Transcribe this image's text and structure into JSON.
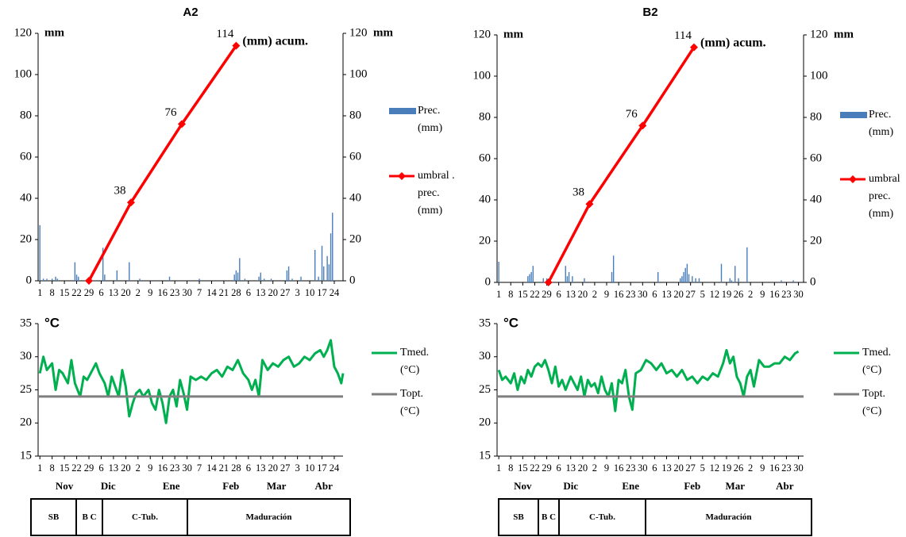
{
  "chart_data": [
    {
      "type": "bar",
      "title": "A2",
      "y_label": "mm",
      "y2_label": "mm",
      "annotation": "(mm) acum.",
      "xlim": [
        0,
        174
      ],
      "ylim": [
        0,
        120
      ],
      "y2lim": [
        0,
        120
      ],
      "yticks": [
        0,
        20,
        40,
        60,
        80,
        100,
        120
      ],
      "y2ticks": [
        0,
        20,
        40,
        60,
        80,
        100,
        120
      ],
      "xticks": [
        1,
        8,
        15,
        22,
        29,
        {
          "value": 36,
          "label": "6"
        },
        {
          "value": 43,
          "label": "13"
        },
        {
          "value": 50,
          "label": "20"
        },
        {
          "value": 57,
          "label": "2"
        },
        {
          "value": 64,
          "label": "9"
        },
        {
          "value": 71,
          "label": "16"
        },
        {
          "value": 78,
          "label": "23"
        },
        {
          "value": 85,
          "label": "30"
        },
        {
          "value": 92,
          "label": "7"
        },
        {
          "value": 99,
          "label": "14"
        },
        {
          "value": 106,
          "label": "21"
        },
        {
          "value": 113,
          "label": "28"
        },
        {
          "value": 120,
          "label": "6"
        },
        {
          "value": 127,
          "label": "13"
        },
        {
          "value": 134,
          "label": "20"
        },
        {
          "value": 141,
          "label": "27"
        },
        {
          "value": 148,
          "label": "3"
        },
        {
          "value": 155,
          "label": "10"
        },
        {
          "value": 162,
          "label": "17"
        },
        {
          "value": 169,
          "label": "24"
        }
      ],
      "series": [
        {
          "name": "Prec. (mm)",
          "type": "bar",
          "color": "#4a7ebb",
          "x": [
            1,
            3,
            5,
            8,
            10,
            11,
            21,
            22,
            23,
            37,
            38,
            45,
            52,
            58,
            75,
            92,
            112,
            113,
            114,
            115,
            118,
            126,
            127,
            129,
            133,
            142,
            143,
            145,
            150,
            158,
            160,
            162,
            163,
            165,
            166,
            167,
            168
          ],
          "values": [
            27,
            1,
            1,
            1,
            2,
            1,
            9,
            3,
            2,
            16,
            3,
            5,
            9,
            1,
            2,
            1,
            3,
            5,
            4,
            11,
            1,
            2,
            4,
            1,
            1,
            5,
            7,
            1,
            2,
            15,
            2,
            17,
            7,
            12,
            8,
            23,
            33
          ]
        },
        {
          "name": "umbral . prec. (mm)",
          "type": "line",
          "marker": "diamond",
          "color": "#ff0000",
          "axis": "y2",
          "x": [
            29,
            53,
            82,
            113
          ],
          "values": [
            0,
            38,
            76,
            114
          ],
          "value_labels": [
            null,
            "38",
            "76",
            "114"
          ]
        }
      ]
    },
    {
      "type": "line",
      "y_label": "°C",
      "xlim": [
        0,
        174
      ],
      "ylim": [
        15,
        35
      ],
      "yticks": [
        15,
        20,
        25,
        30,
        35
      ],
      "xticks": [
        1,
        8,
        15,
        22,
        29,
        {
          "value": 36,
          "label": "6"
        },
        {
          "value": 43,
          "label": "13"
        },
        {
          "value": 50,
          "label": "20"
        },
        {
          "value": 57,
          "label": "2"
        },
        {
          "value": 64,
          "label": "9"
        },
        {
          "value": 71,
          "label": "16"
        },
        {
          "value": 78,
          "label": "23"
        },
        {
          "value": 85,
          "label": "30"
        },
        {
          "value": 92,
          "label": "7"
        },
        {
          "value": 99,
          "label": "14"
        },
        {
          "value": 106,
          "label": "21"
        },
        {
          "value": 113,
          "label": "28"
        },
        {
          "value": 120,
          "label": "6"
        },
        {
          "value": 127,
          "label": "13"
        },
        {
          "value": 134,
          "label": "20"
        },
        {
          "value": 141,
          "label": "27"
        },
        {
          "value": 148,
          "label": "3"
        },
        {
          "value": 155,
          "label": "10"
        },
        {
          "value": 162,
          "label": "17"
        },
        {
          "value": 169,
          "label": "24"
        }
      ],
      "xticks2": [
        {
          "value": 15,
          "label": "Nov"
        },
        {
          "value": 40,
          "label": "Dic"
        },
        {
          "value": 76,
          "label": "Ene"
        },
        {
          "value": 110,
          "label": "Feb"
        },
        {
          "value": 136,
          "label": "Mar"
        },
        {
          "value": 163,
          "label": "Abr"
        }
      ],
      "series": [
        {
          "name": "Tmed. (°C)",
          "type": "line",
          "color": "#00b050",
          "x": [
            1,
            3,
            5,
            8,
            10,
            12,
            14,
            17,
            19,
            21,
            24,
            26,
            28,
            31,
            33,
            35,
            38,
            40,
            42,
            44,
            46,
            48,
            50,
            52,
            54,
            56,
            58,
            60,
            63,
            65,
            67,
            69,
            71,
            73,
            75,
            77,
            79,
            81,
            83,
            85,
            87,
            90,
            93,
            96,
            99,
            102,
            105,
            108,
            111,
            114,
            117,
            120,
            122,
            124,
            126,
            128,
            131,
            134,
            137,
            140,
            143,
            146,
            149,
            152,
            155,
            158,
            161,
            163,
            165,
            167,
            169,
            171,
            173,
            174
          ],
          "values": [
            27.5,
            30,
            28,
            29,
            25,
            28,
            27.5,
            26,
            29.5,
            26,
            24,
            27,
            26.5,
            28,
            29,
            27.5,
            26,
            24,
            27,
            25.5,
            24,
            28,
            25.5,
            21,
            23,
            24.5,
            25,
            24,
            25,
            23,
            22,
            25,
            23,
            20,
            24,
            25,
            22.5,
            26.5,
            24.5,
            22,
            27,
            26.5,
            27,
            26.5,
            27.5,
            28,
            27,
            28.5,
            28,
            29.5,
            27.5,
            26.5,
            25,
            26.5,
            24,
            29.5,
            28,
            29,
            28.5,
            29.5,
            30,
            28.5,
            29,
            30,
            29.5,
            30.5,
            31,
            30,
            31,
            32.5,
            28.5,
            27.5,
            26,
            27.5
          ]
        },
        {
          "name": "Topt. (°C)",
          "type": "line",
          "color": "#7f7f7f",
          "x": [
            0,
            174
          ],
          "values": [
            24,
            24
          ]
        }
      ]
    },
    {
      "type": "bar",
      "title": "B2",
      "y_label": "mm",
      "y2_label": "mm",
      "annotation": "(mm) acum.",
      "xlim": [
        0,
        179
      ],
      "ylim": [
        0,
        120
      ],
      "y2lim": [
        0,
        120
      ],
      "yticks": [
        0,
        20,
        40,
        60,
        80,
        100,
        120
      ],
      "y2ticks": [
        0,
        20,
        40,
        60,
        80,
        100,
        120
      ],
      "xticks": [
        1,
        8,
        15,
        22,
        29,
        {
          "value": 36,
          "label": "6"
        },
        {
          "value": 43,
          "label": "13"
        },
        {
          "value": 50,
          "label": "20"
        },
        {
          "value": 57,
          "label": "2"
        },
        {
          "value": 64,
          "label": "9"
        },
        {
          "value": 71,
          "label": "16"
        },
        {
          "value": 78,
          "label": "23"
        },
        {
          "value": 85,
          "label": "30"
        },
        {
          "value": 92,
          "label": "6"
        },
        {
          "value": 99,
          "label": "13"
        },
        {
          "value": 106,
          "label": "20"
        },
        {
          "value": 113,
          "label": "27"
        },
        {
          "value": 120,
          "label": "5"
        },
        {
          "value": 127,
          "label": "12"
        },
        {
          "value": 134,
          "label": "19"
        },
        {
          "value": 141,
          "label": "26"
        },
        {
          "value": 148,
          "label": "2"
        },
        {
          "value": 155,
          "label": "9"
        },
        {
          "value": 162,
          "label": "16"
        },
        {
          "value": 169,
          "label": "23"
        },
        {
          "value": 176,
          "label": "30"
        }
      ],
      "series": [
        {
          "name": "Prec. (mm)",
          "type": "bar",
          "color": "#4a7ebb",
          "x": [
            1,
            18,
            19,
            20,
            21,
            27,
            29,
            40,
            41,
            42,
            44,
            51,
            67,
            68,
            94,
            107,
            108,
            109,
            110,
            111,
            112,
            114,
            116,
            118,
            131,
            136,
            137,
            139,
            141,
            146,
            166,
            173
          ],
          "values": [
            10,
            3,
            4,
            5,
            8,
            2,
            2,
            8,
            3,
            5,
            3,
            2,
            5,
            13,
            5,
            2,
            3,
            5,
            7,
            9,
            4,
            3,
            2,
            2,
            9,
            2,
            1,
            8,
            2,
            17,
            1,
            1
          ]
        },
        {
          "name": "umbral prec. (mm)",
          "type": "line",
          "marker": "diamond",
          "color": "#ff0000",
          "axis": "y2",
          "x": [
            30,
            54,
            85,
            115
          ],
          "values": [
            0,
            38,
            76,
            114
          ],
          "value_labels": [
            null,
            "38",
            "76",
            "114"
          ]
        }
      ]
    },
    {
      "type": "line",
      "y_label": "°C",
      "xlim": [
        0,
        179
      ],
      "ylim": [
        15,
        35
      ],
      "yticks": [
        15,
        20,
        25,
        30,
        35
      ],
      "xticks": [
        1,
        8,
        15,
        22,
        29,
        {
          "value": 36,
          "label": "6"
        },
        {
          "value": 43,
          "label": "13"
        },
        {
          "value": 50,
          "label": "20"
        },
        {
          "value": 57,
          "label": "2"
        },
        {
          "value": 64,
          "label": "9"
        },
        {
          "value": 71,
          "label": "16"
        },
        {
          "value": 78,
          "label": "23"
        },
        {
          "value": 85,
          "label": "30"
        },
        {
          "value": 92,
          "label": "6"
        },
        {
          "value": 99,
          "label": "13"
        },
        {
          "value": 106,
          "label": "20"
        },
        {
          "value": 113,
          "label": "27"
        },
        {
          "value": 120,
          "label": "5"
        },
        {
          "value": 127,
          "label": "12"
        },
        {
          "value": 134,
          "label": "19"
        },
        {
          "value": 141,
          "label": "26"
        },
        {
          "value": 148,
          "label": "2"
        },
        {
          "value": 155,
          "label": "9"
        },
        {
          "value": 162,
          "label": "16"
        },
        {
          "value": 169,
          "label": "23"
        },
        {
          "value": 176,
          "label": "30"
        }
      ],
      "xticks2": [
        {
          "value": 15,
          "label": "Nov"
        },
        {
          "value": 43,
          "label": "Dic"
        },
        {
          "value": 78,
          "label": "Ene"
        },
        {
          "value": 114,
          "label": "Feb"
        },
        {
          "value": 139,
          "label": "Mar"
        },
        {
          "value": 168,
          "label": "Abr"
        }
      ],
      "series": [
        {
          "name": "Tmed. (°C)",
          "type": "line",
          "color": "#00b050",
          "x": [
            1,
            3,
            5,
            8,
            10,
            12,
            14,
            16,
            18,
            20,
            22,
            24,
            26,
            28,
            30,
            32,
            34,
            36,
            38,
            40,
            43,
            45,
            47,
            49,
            51,
            53,
            55,
            57,
            59,
            61,
            63,
            65,
            67,
            69,
            71,
            73,
            75,
            77,
            79,
            81,
            84,
            87,
            90,
            93,
            96,
            99,
            102,
            105,
            108,
            111,
            114,
            117,
            120,
            123,
            126,
            129,
            132,
            134,
            136,
            138,
            140,
            142,
            144,
            146,
            148,
            150,
            153,
            156,
            159,
            162,
            165,
            168,
            171,
            174,
            176
          ],
          "values": [
            28,
            26.5,
            27,
            26,
            27.5,
            25,
            27,
            26,
            28,
            27,
            28.5,
            29,
            28.5,
            29.5,
            28,
            26,
            28.5,
            25.5,
            26.5,
            25,
            27,
            26,
            25,
            27,
            24,
            26.5,
            25.5,
            26,
            24.5,
            27,
            25,
            24,
            26,
            21.8,
            26.5,
            26,
            28,
            24,
            22,
            27.5,
            28,
            29.5,
            29,
            28,
            29,
            27.5,
            28,
            27,
            28,
            26.5,
            27,
            26,
            27,
            26.5,
            27.5,
            27,
            29,
            31,
            29,
            30,
            27,
            26,
            24,
            27,
            28,
            25.5,
            29.5,
            28.5,
            28.5,
            29,
            29,
            30,
            29.5,
            30.5,
            30.8
          ]
        },
        {
          "name": "Topt. (°C)",
          "type": "line",
          "color": "#7f7f7f",
          "x": [
            0,
            179
          ],
          "values": [
            24,
            24
          ]
        }
      ]
    }
  ],
  "phase_tables": [
    [
      "SB",
      "B C",
      "C-Tub.",
      "Maduración"
    ],
    [
      "SB",
      "B C",
      "C-Tub.",
      "Maduración"
    ]
  ]
}
